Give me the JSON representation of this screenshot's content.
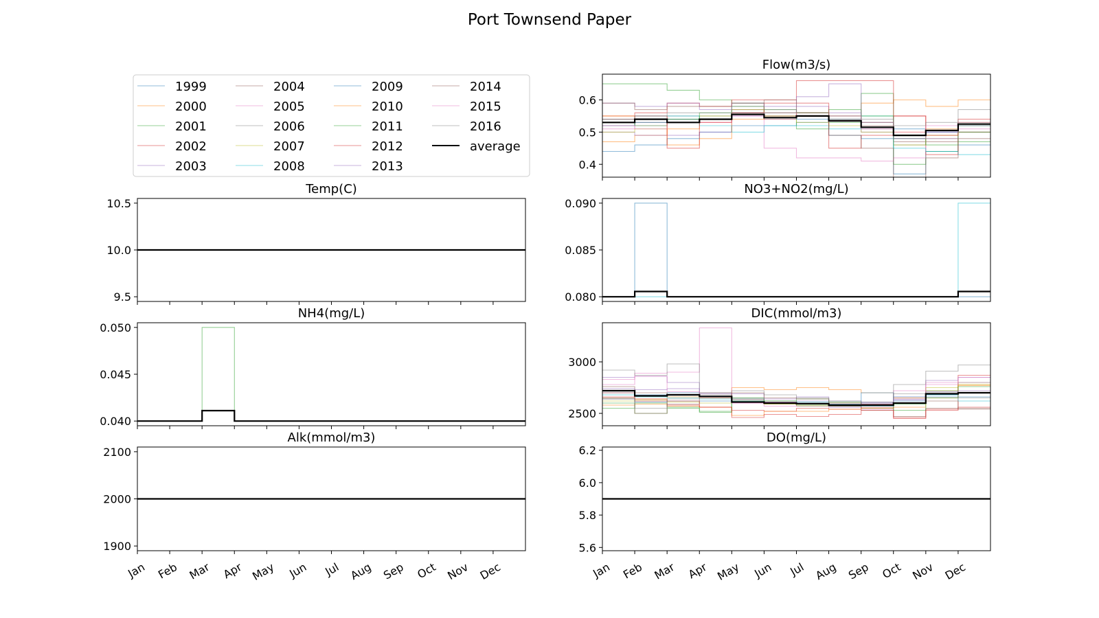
{
  "figure": {
    "title": "Port Townsend Paper"
  },
  "months": [
    "Jan",
    "Feb",
    "Mar",
    "Apr",
    "May",
    "Jun",
    "Jul",
    "Aug",
    "Sep",
    "Oct",
    "Nov",
    "Dec"
  ],
  "legend": {
    "entries": [
      "1999",
      "2000",
      "2001",
      "2002",
      "2003",
      "2004",
      "2005",
      "2006",
      "2007",
      "2008",
      "2009",
      "2010",
      "2011",
      "2012",
      "2013",
      "2014",
      "2015",
      "2016",
      "average"
    ],
    "colors": [
      "#1f77b4",
      "#ff7f0e",
      "#2ca02c",
      "#d62728",
      "#9467bd",
      "#8c564b",
      "#e377c2",
      "#7f7f7f",
      "#bcbd22",
      "#17becf",
      "#1f77b4",
      "#ff7f0e",
      "#2ca02c",
      "#d62728",
      "#9467bd",
      "#8c564b",
      "#e377c2",
      "#7f7f7f",
      "#000000"
    ]
  },
  "chart_data": [
    {
      "type": "line",
      "title": "Flow(m3/s)",
      "ylim": [
        0.36,
        0.68
      ],
      "yticks": [
        "0.4",
        "0.5",
        "0.6"
      ],
      "x": [
        "Jan",
        "Feb",
        "Mar",
        "Apr",
        "May",
        "Jun",
        "Jul",
        "Aug",
        "Sep",
        "Oct",
        "Nov",
        "Dec"
      ],
      "series": [
        {
          "name": "1999",
          "values": [
            0.44,
            0.46,
            0.48,
            0.5,
            0.52,
            0.52,
            0.53,
            0.49,
            0.48,
            0.37,
            0.44,
            0.46
          ]
        },
        {
          "name": "2000",
          "values": [
            0.47,
            0.49,
            0.51,
            0.53,
            0.56,
            0.54,
            0.55,
            0.54,
            0.59,
            0.6,
            0.58,
            0.6
          ]
        },
        {
          "name": "2001",
          "values": [
            0.65,
            0.65,
            0.63,
            0.6,
            0.59,
            0.57,
            0.51,
            0.53,
            0.62,
            0.4,
            0.44,
            0.47
          ]
        },
        {
          "name": "2002",
          "values": [
            0.55,
            0.56,
            0.59,
            0.58,
            0.6,
            0.6,
            0.66,
            0.66,
            0.66,
            0.55,
            0.43,
            0.5
          ]
        },
        {
          "name": "2003",
          "values": [
            0.5,
            0.49,
            0.49,
            0.5,
            0.55,
            0.54,
            0.58,
            0.56,
            0.5,
            0.48,
            0.5,
            0.52
          ]
        },
        {
          "name": "2004",
          "values": [
            0.52,
            0.53,
            0.54,
            0.54,
            0.56,
            0.56,
            0.56,
            0.54,
            0.52,
            0.47,
            0.47,
            0.5
          ]
        },
        {
          "name": "2005",
          "values": [
            0.51,
            0.52,
            0.53,
            0.54,
            0.57,
            0.45,
            0.42,
            0.42,
            0.41,
            0.42,
            0.48,
            0.52
          ]
        },
        {
          "name": "2006",
          "values": [
            0.53,
            0.54,
            0.55,
            0.55,
            0.57,
            0.55,
            0.55,
            0.55,
            0.51,
            0.46,
            0.48,
            0.52
          ]
        },
        {
          "name": "2007",
          "values": [
            0.5,
            0.51,
            0.53,
            0.55,
            0.57,
            0.55,
            0.53,
            0.52,
            0.5,
            0.46,
            0.49,
            0.52
          ]
        },
        {
          "name": "2008",
          "values": [
            0.54,
            0.55,
            0.55,
            0.52,
            0.5,
            0.52,
            0.52,
            0.51,
            0.55,
            0.45,
            0.44,
            0.43
          ]
        },
        {
          "name": "2009",
          "values": [
            0.52,
            0.53,
            0.54,
            0.54,
            0.56,
            0.55,
            0.54,
            0.54,
            0.53,
            0.51,
            0.5,
            0.52
          ]
        },
        {
          "name": "2010",
          "values": [
            0.55,
            0.54,
            0.46,
            0.48,
            0.54,
            0.55,
            0.56,
            0.55,
            0.53,
            0.5,
            0.51,
            0.53
          ]
        },
        {
          "name": "2011",
          "values": [
            0.53,
            0.52,
            0.54,
            0.56,
            0.58,
            0.56,
            0.56,
            0.57,
            0.55,
            0.48,
            0.46,
            0.5
          ]
        },
        {
          "name": "2012",
          "values": [
            0.54,
            0.55,
            0.45,
            0.53,
            0.56,
            0.59,
            0.59,
            0.45,
            0.49,
            0.55,
            0.49,
            0.54
          ]
        },
        {
          "name": "2013",
          "values": [
            0.59,
            0.58,
            0.59,
            0.57,
            0.59,
            0.58,
            0.61,
            0.65,
            0.53,
            0.48,
            0.5,
            0.53
          ]
        },
        {
          "name": "2014",
          "values": [
            0.59,
            0.57,
            0.58,
            0.58,
            0.59,
            0.6,
            0.56,
            0.49,
            0.45,
            0.36,
            0.42,
            0.48
          ]
        },
        {
          "name": "2015",
          "values": [
            0.52,
            0.51,
            0.53,
            0.53,
            0.55,
            0.56,
            0.55,
            0.55,
            0.51,
            0.5,
            0.52,
            0.51
          ]
        },
        {
          "name": "2016",
          "values": [
            0.54,
            0.55,
            0.56,
            0.56,
            0.58,
            0.57,
            0.56,
            0.55,
            0.54,
            0.52,
            0.53,
            0.57
          ]
        },
        {
          "name": "average",
          "values": [
            0.53,
            0.54,
            0.53,
            0.54,
            0.555,
            0.545,
            0.55,
            0.535,
            0.515,
            0.49,
            0.505,
            0.525
          ]
        }
      ]
    },
    {
      "type": "line",
      "title": "Temp(C)",
      "ylim": [
        9.45,
        10.55
      ],
      "yticks": [
        "9.5",
        "10.0",
        "10.5"
      ],
      "x": [
        "Jan",
        "Feb",
        "Mar",
        "Apr",
        "May",
        "Jun",
        "Jul",
        "Aug",
        "Sep",
        "Oct",
        "Nov",
        "Dec"
      ],
      "series": [
        {
          "name": "average",
          "values": [
            10.0,
            10.0,
            10.0,
            10.0,
            10.0,
            10.0,
            10.0,
            10.0,
            10.0,
            10.0,
            10.0,
            10.0
          ]
        }
      ]
    },
    {
      "type": "line",
      "title": "NO3+NO2(mg/L)",
      "ylim": [
        0.0795,
        0.0905
      ],
      "yticks": [
        "0.080",
        "0.085",
        "0.090"
      ],
      "x": [
        "Jan",
        "Feb",
        "Mar",
        "Apr",
        "May",
        "Jun",
        "Jul",
        "Aug",
        "Sep",
        "Oct",
        "Nov",
        "Dec"
      ],
      "series": [
        {
          "name": "1999",
          "values": [
            0.08,
            0.09,
            0.08,
            0.08,
            0.08,
            0.08,
            0.08,
            0.08,
            0.08,
            0.08,
            0.08,
            0.08
          ]
        },
        {
          "name": "2008",
          "values": [
            0.08,
            0.08,
            0.08,
            0.08,
            0.08,
            0.08,
            0.08,
            0.08,
            0.08,
            0.08,
            0.08,
            0.09
          ]
        },
        {
          "name": "average",
          "values": [
            0.08,
            0.08056,
            0.08,
            0.08,
            0.08,
            0.08,
            0.08,
            0.08,
            0.08,
            0.08,
            0.08,
            0.08056
          ]
        }
      ]
    },
    {
      "type": "line",
      "title": "NH4(mg/L)",
      "ylim": [
        0.0395,
        0.0505
      ],
      "yticks": [
        "0.040",
        "0.045",
        "0.050"
      ],
      "x": [
        "Jan",
        "Feb",
        "Mar",
        "Apr",
        "May",
        "Jun",
        "Jul",
        "Aug",
        "Sep",
        "Oct",
        "Nov",
        "Dec"
      ],
      "series": [
        {
          "name": "2011",
          "values": [
            0.04,
            0.04,
            0.05,
            0.04,
            0.04,
            0.04,
            0.04,
            0.04,
            0.04,
            0.04,
            0.04,
            0.04
          ]
        },
        {
          "name": "average",
          "values": [
            0.04,
            0.04,
            0.04111,
            0.04,
            0.04,
            0.04,
            0.04,
            0.04,
            0.04,
            0.04,
            0.04,
            0.04
          ]
        }
      ]
    },
    {
      "type": "line",
      "title": "DIC(mmol/m3)",
      "ylim": [
        2380,
        3380
      ],
      "yticks": [
        "2500",
        "3000"
      ],
      "x": [
        "Jan",
        "Feb",
        "Mar",
        "Apr",
        "May",
        "Jun",
        "Jul",
        "Aug",
        "Sep",
        "Oct",
        "Nov",
        "Dec"
      ],
      "series": [
        {
          "name": "1999",
          "values": [
            2700,
            2680,
            2700,
            2660,
            2620,
            2600,
            2580,
            2560,
            2600,
            2640,
            2680,
            2700
          ]
        },
        {
          "name": "2000",
          "values": [
            2650,
            2640,
            2660,
            2650,
            2750,
            2730,
            2750,
            2730,
            2700,
            2650,
            2720,
            2780
          ]
        },
        {
          "name": "2001",
          "values": [
            2550,
            2600,
            2560,
            2520,
            2640,
            2620,
            2580,
            2570,
            2550,
            2590,
            2720,
            2800
          ]
        },
        {
          "name": "2002",
          "values": [
            2700,
            2620,
            2580,
            2560,
            2530,
            2520,
            2550,
            2540,
            2560,
            2460,
            2540,
            2870
          ]
        },
        {
          "name": "2003",
          "values": [
            2850,
            2860,
            2800,
            2700,
            2640,
            2610,
            2620,
            2600,
            2610,
            2630,
            2820,
            2850
          ]
        },
        {
          "name": "2004",
          "values": [
            2760,
            2700,
            2680,
            2700,
            2630,
            2590,
            2570,
            2570,
            2530,
            2470,
            2550,
            2540
          ]
        },
        {
          "name": "2005",
          "values": [
            2780,
            2890,
            2900,
            3330,
            2600,
            2570,
            2590,
            2560,
            2540,
            2720,
            2800,
            2850
          ]
        },
        {
          "name": "2006",
          "values": [
            2920,
            2870,
            2980,
            2680,
            2650,
            2620,
            2600,
            2580,
            2600,
            2780,
            2910,
            2970
          ]
        },
        {
          "name": "2007",
          "values": [
            2620,
            2630,
            2610,
            2600,
            2620,
            2590,
            2580,
            2600,
            2590,
            2600,
            2750,
            2780
          ]
        },
        {
          "name": "2008",
          "values": [
            2680,
            2660,
            2650,
            2640,
            2620,
            2600,
            2610,
            2580,
            2570,
            2660,
            2680,
            2620
          ]
        },
        {
          "name": "2009",
          "values": [
            2640,
            2610,
            2620,
            2620,
            2610,
            2600,
            2590,
            2590,
            2700,
            2620,
            2660,
            2660
          ]
        },
        {
          "name": "2010",
          "values": [
            2580,
            2590,
            2570,
            2560,
            2480,
            2520,
            2520,
            2540,
            2550,
            2560,
            2650,
            2770
          ]
        },
        {
          "name": "2011",
          "values": [
            2600,
            2500,
            2550,
            2510,
            2650,
            2620,
            2640,
            2610,
            2580,
            2530,
            2650,
            2760
          ]
        },
        {
          "name": "2012",
          "values": [
            2660,
            2640,
            2620,
            2560,
            2460,
            2490,
            2470,
            2490,
            2530,
            2450,
            2530,
            2560
          ]
        },
        {
          "name": "2013",
          "values": [
            2740,
            2730,
            2740,
            2690,
            2690,
            2640,
            2660,
            2620,
            2600,
            2660,
            2710,
            2720
          ]
        },
        {
          "name": "2014",
          "values": [
            2640,
            2500,
            2590,
            2650,
            2700,
            2650,
            2640,
            2600,
            2590,
            2600,
            2620,
            2550
          ]
        },
        {
          "name": "2015",
          "values": [
            2830,
            2860,
            2710,
            2660,
            2600,
            2610,
            2600,
            2580,
            2590,
            2640,
            2780,
            2800
          ]
        },
        {
          "name": "2016",
          "values": [
            2650,
            2550,
            2640,
            2700,
            2720,
            2680,
            2650,
            2620,
            2610,
            2690,
            2700,
            2650
          ]
        },
        {
          "name": "average",
          "values": [
            2720,
            2670,
            2680,
            2665,
            2610,
            2600,
            2595,
            2580,
            2580,
            2600,
            2690,
            2700
          ]
        }
      ]
    },
    {
      "type": "line",
      "title": "Alk(mmol/m3)",
      "ylim": [
        1890,
        2110
      ],
      "yticks": [
        "1900",
        "2000",
        "2100"
      ],
      "x": [
        "Jan",
        "Feb",
        "Mar",
        "Apr",
        "May",
        "Jun",
        "Jul",
        "Aug",
        "Sep",
        "Oct",
        "Nov",
        "Dec"
      ],
      "series": [
        {
          "name": "average",
          "values": [
            2000,
            2000,
            2000,
            2000,
            2000,
            2000,
            2000,
            2000,
            2000,
            2000,
            2000,
            2000
          ]
        }
      ]
    },
    {
      "type": "line",
      "title": "DO(mg/L)",
      "ylim": [
        5.58,
        6.22
      ],
      "yticks": [
        "5.6",
        "5.8",
        "6.0",
        "6.2"
      ],
      "x": [
        "Jan",
        "Feb",
        "Mar",
        "Apr",
        "May",
        "Jun",
        "Jul",
        "Aug",
        "Sep",
        "Oct",
        "Nov",
        "Dec"
      ],
      "series": [
        {
          "name": "average",
          "values": [
            5.9,
            5.9,
            5.9,
            5.9,
            5.9,
            5.9,
            5.9,
            5.9,
            5.9,
            5.9,
            5.9,
            5.9
          ]
        }
      ]
    }
  ]
}
